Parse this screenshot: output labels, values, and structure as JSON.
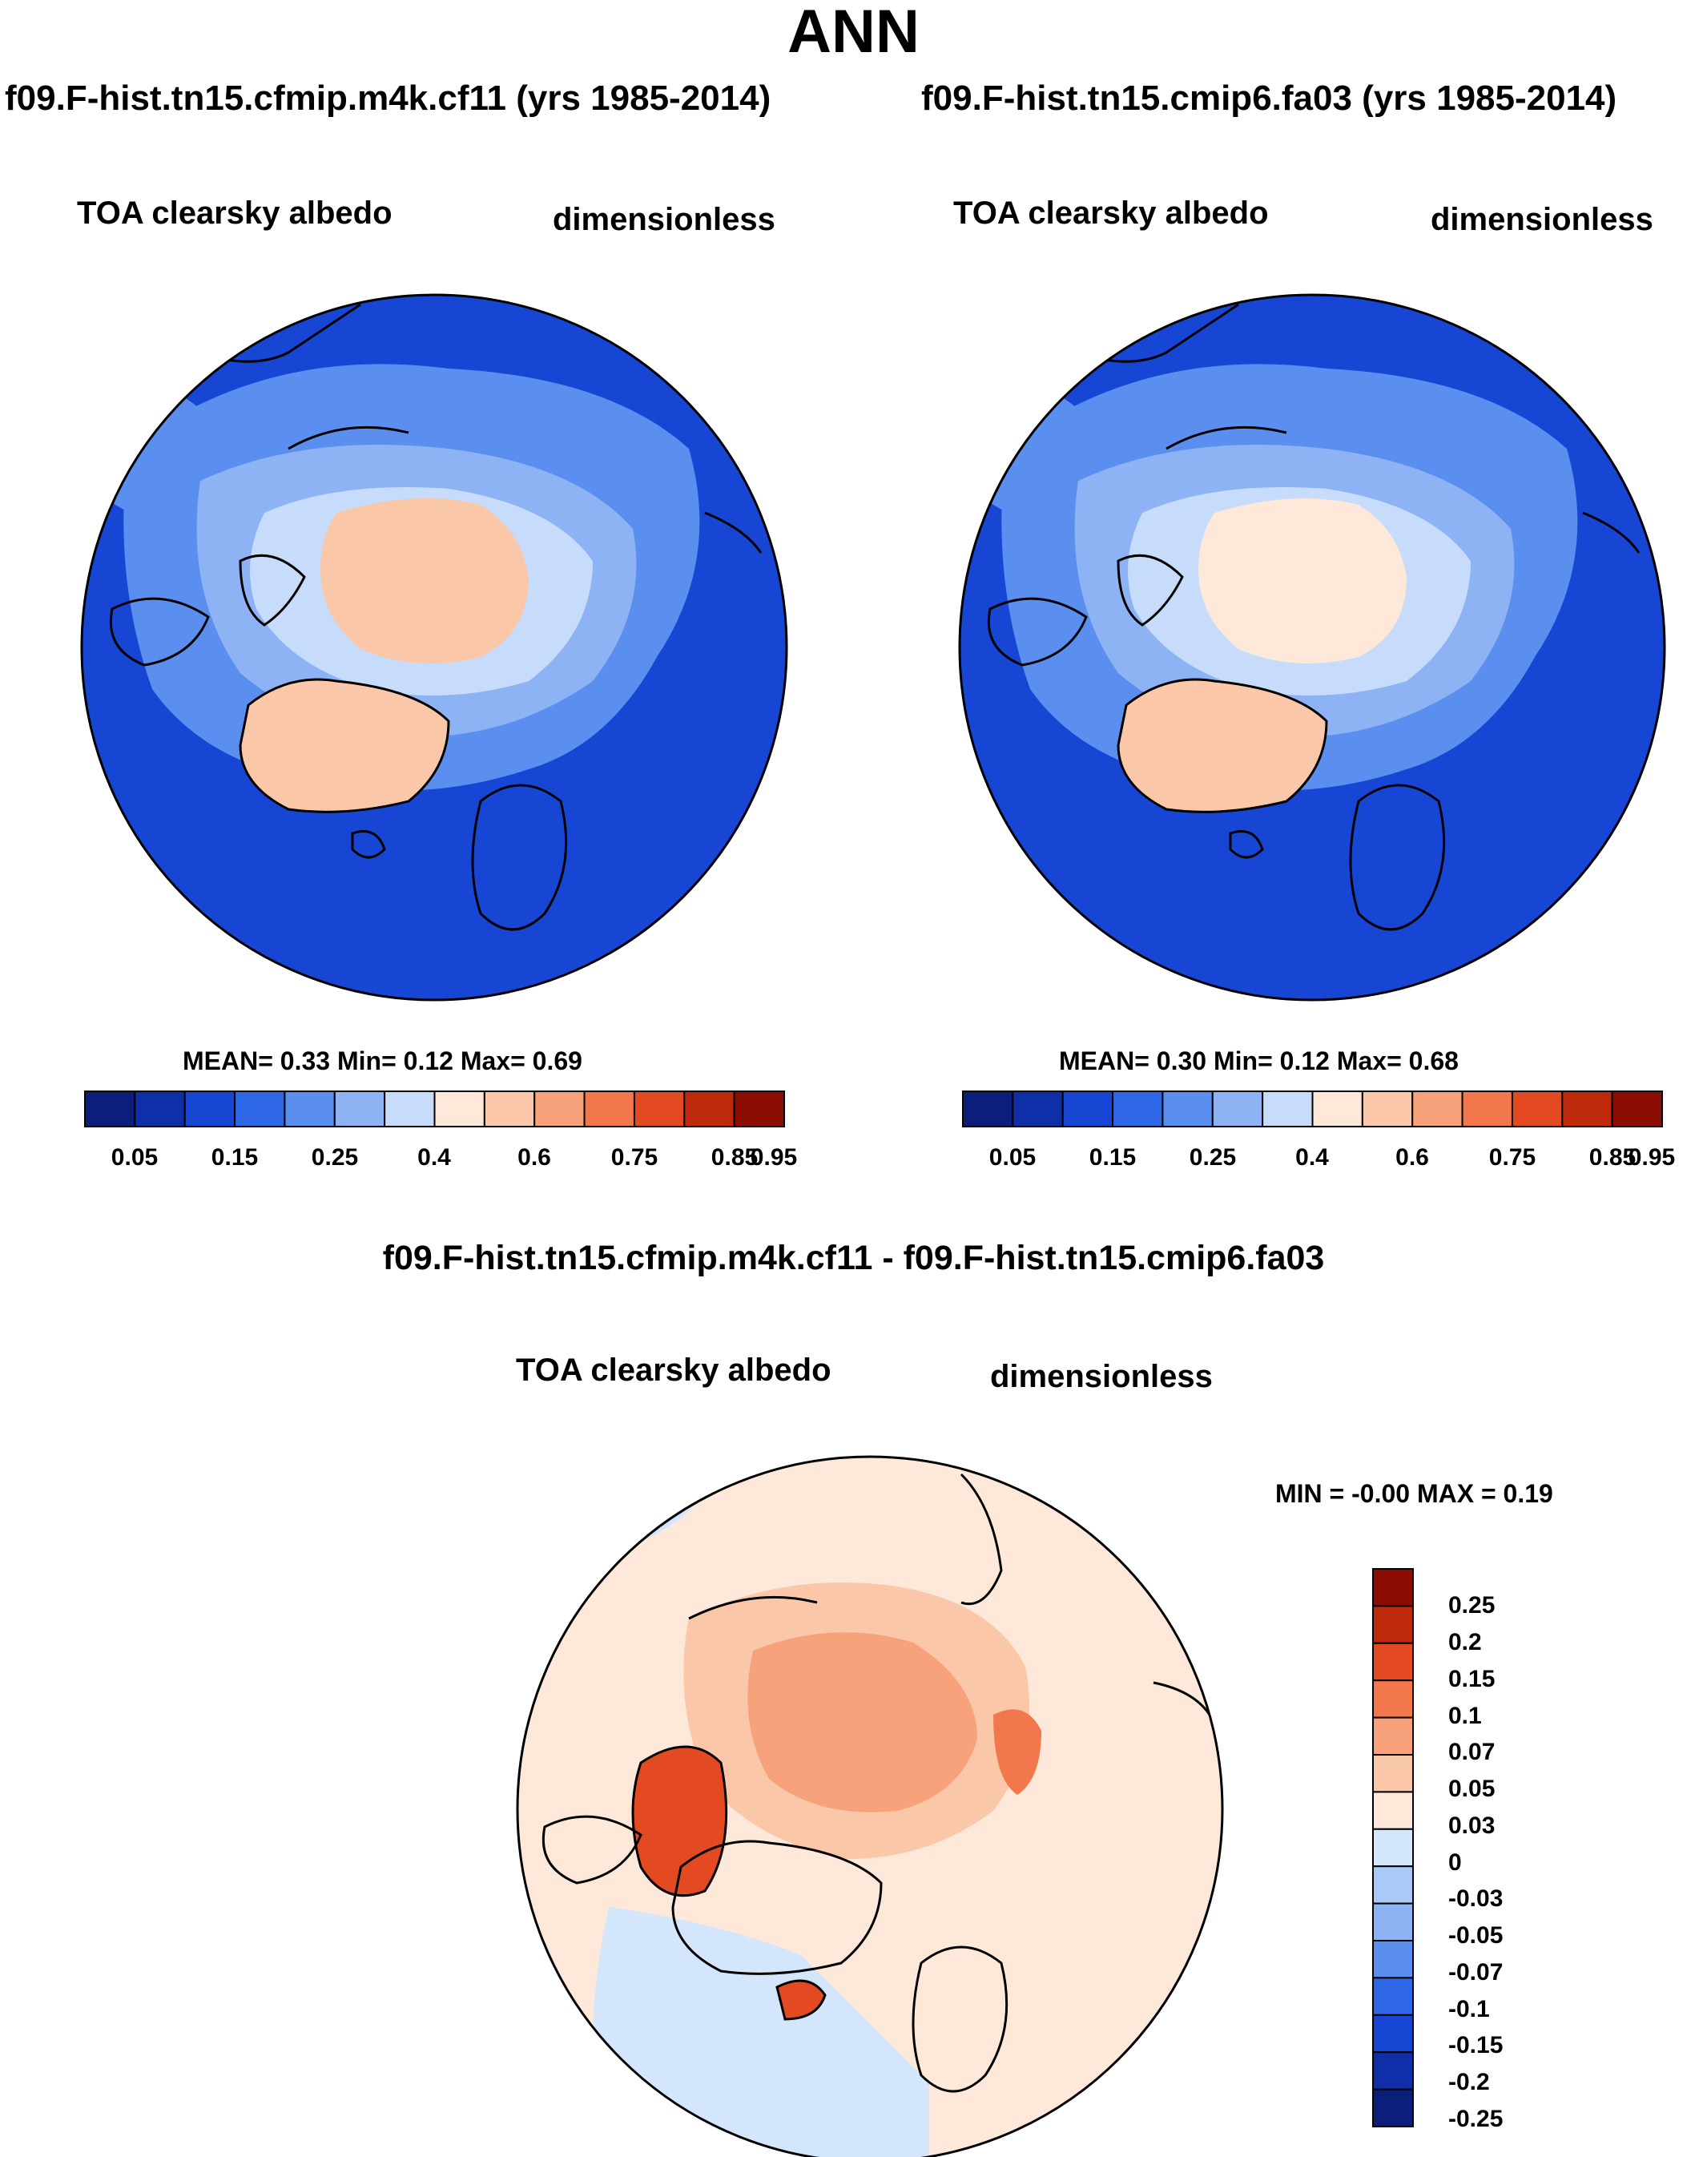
{
  "title": "ANN",
  "left_panel": {
    "case": "f09.F-hist.tn15.cfmip.m4k.cf11 (yrs 1985-2014)",
    "variable": "TOA clearsky albedo",
    "units": "dimensionless",
    "stats": "MEAN=   0.33  Min=   0.12  Max=   0.69"
  },
  "right_panel": {
    "case": "f09.F-hist.tn15.cmip6.fa03 (yrs 1985-2014)",
    "variable": "TOA clearsky albedo",
    "units": "dimensionless",
    "stats": "MEAN=   0.30  Min=   0.12  Max=   0.68"
  },
  "diff_panel": {
    "title": "f09.F-hist.tn15.cfmip.m4k.cf11 - f09.F-hist.tn15.cmip6.fa03",
    "variable": "TOA clearsky albedo",
    "units": "dimensionless",
    "stats": "MIN =  -0.00 MAX =   0.19"
  },
  "colorbar_abs": {
    "colors": [
      "#0a1e7a",
      "#0f2fa8",
      "#1846d4",
      "#2f68e6",
      "#5a8eef",
      "#8db3f5",
      "#c6dcfa",
      "#fde8d9",
      "#fbc7a9",
      "#f8a27b",
      "#f3774c",
      "#e44a22",
      "#bf2a0d",
      "#8c0d04"
    ],
    "labels": [
      "0.05",
      "0.15",
      "0.25",
      "0.4",
      "0.6",
      "0.75",
      "0.85",
      "0.95"
    ]
  },
  "colorbar_diff": {
    "colors": [
      "#8c0d04",
      "#bf2a0d",
      "#e44a22",
      "#f3774c",
      "#f8a27b",
      "#fbc7a9",
      "#fde8d9",
      "#d4e6fb",
      "#aac9f7",
      "#8db3f5",
      "#5a8eef",
      "#2f68e6",
      "#1846d4",
      "#0f2fa8",
      "#0a1e7a"
    ],
    "labels": [
      "0.25",
      "0.2",
      "0.15",
      "0.1",
      "0.07",
      "0.05",
      "0.03",
      "0",
      "-0.03",
      "-0.05",
      "-0.07",
      "-0.1",
      "-0.15",
      "-0.2",
      "-0.25"
    ]
  }
}
